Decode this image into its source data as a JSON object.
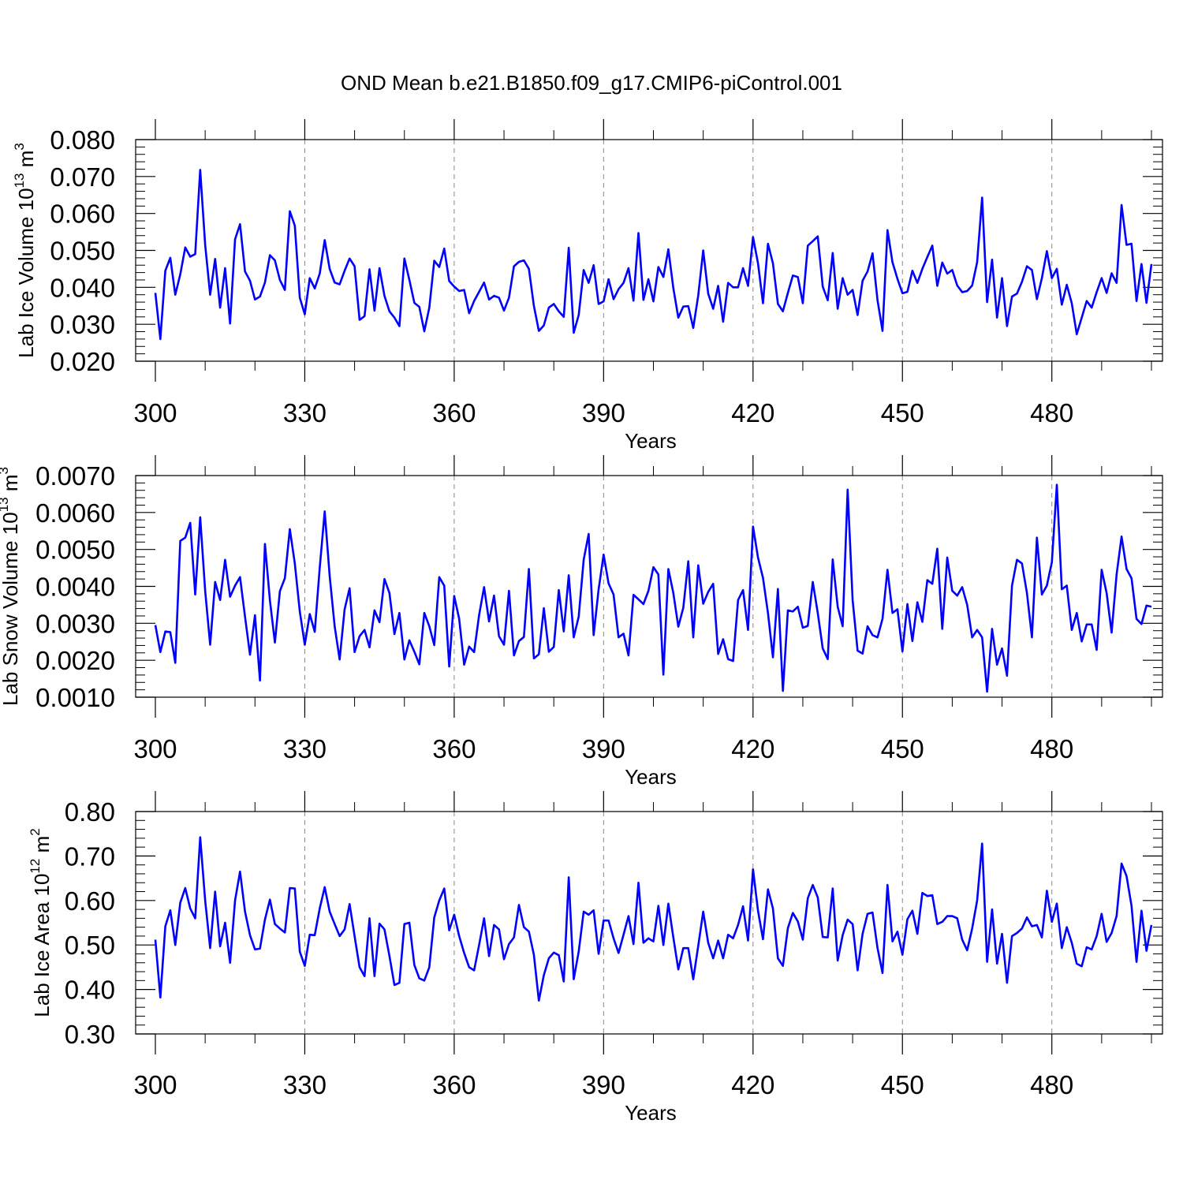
{
  "title": "OND Mean b.e21.B1850.f09_g17.CMIP6-piControl.001",
  "chart_data": [
    {
      "type": "line",
      "title": "OND Mean b.e21.B1850.f09_g17.CMIP6-piControl.001",
      "xlabel": "Years",
      "ylabel": "Lab Ice Volume 10",
      "ylabel_exp": "13",
      "ylabel_unit": " m",
      "ylabel_unit_exp": "3",
      "xlim": [
        300,
        500
      ],
      "ylim": [
        0.02,
        0.08
      ],
      "xticks": [
        300,
        330,
        360,
        390,
        420,
        450,
        480
      ],
      "xtick_labels": [
        "300",
        "330",
        "360",
        "390",
        "420",
        "450",
        "480"
      ],
      "yticks": [
        0.02,
        0.03,
        0.04,
        0.05,
        0.06,
        0.07,
        0.08
      ],
      "ytick_labels": [
        "0.020",
        "0.030",
        "0.040",
        "0.050",
        "0.060",
        "0.070",
        "0.080"
      ],
      "grid": "dashed vertical at x ticks",
      "series": [
        {
          "name": "Lab Ice Volume",
          "color": "#0000ff",
          "x_start": 300,
          "x_step": 1,
          "values": [
            0.0385,
            0.026,
            0.0445,
            0.048,
            0.038,
            0.0435,
            0.0508,
            0.0483,
            0.049,
            0.0718,
            0.0515,
            0.038,
            0.0477,
            0.0345,
            0.0452,
            0.0302,
            0.053,
            0.0571,
            0.0443,
            0.0418,
            0.0367,
            0.0375,
            0.0413,
            0.0487,
            0.0473,
            0.042,
            0.0393,
            0.0606,
            0.0567,
            0.0372,
            0.0327,
            0.0425,
            0.0397,
            0.0437,
            0.0528,
            0.045,
            0.0413,
            0.0408,
            0.0445,
            0.0478,
            0.0457,
            0.0312,
            0.0322,
            0.0449,
            0.0337,
            0.0452,
            0.0377,
            0.0335,
            0.0318,
            0.0295,
            0.0478,
            0.042,
            0.0358,
            0.0347,
            0.0281,
            0.0345,
            0.0472,
            0.0455,
            0.0505,
            0.0417,
            0.0402,
            0.039,
            0.0393,
            0.033,
            0.0363,
            0.0388,
            0.0413,
            0.0367,
            0.0377,
            0.0372,
            0.0337,
            0.0372,
            0.0457,
            0.0469,
            0.0473,
            0.045,
            0.035,
            0.0282,
            0.0297,
            0.0345,
            0.0355,
            0.0335,
            0.032,
            0.0507,
            0.0277,
            0.0325,
            0.0447,
            0.0412,
            0.046,
            0.0355,
            0.0362,
            0.0422,
            0.0368,
            0.0395,
            0.0412,
            0.0452,
            0.0364,
            0.0547,
            0.0366,
            0.0422,
            0.0362,
            0.0455,
            0.0428,
            0.0503,
            0.0398,
            0.0318,
            0.0348,
            0.0349,
            0.029,
            0.0378,
            0.05,
            0.0383,
            0.0342,
            0.0404,
            0.0307,
            0.0412,
            0.04,
            0.04,
            0.0452,
            0.0404,
            0.0536,
            0.0465,
            0.0357,
            0.0518,
            0.0465,
            0.0355,
            0.0335,
            0.0385,
            0.0432,
            0.0428,
            0.0357,
            0.0513,
            0.0525,
            0.0538,
            0.0402,
            0.0365,
            0.0493,
            0.0342,
            0.0425,
            0.038,
            0.0393,
            0.0325,
            0.0418,
            0.0443,
            0.0492,
            0.0365,
            0.0282,
            0.0555,
            0.0468,
            0.0423,
            0.0384,
            0.0388,
            0.0445,
            0.0412,
            0.045,
            0.0482,
            0.0513,
            0.0404,
            0.0467,
            0.0437,
            0.0447,
            0.0405,
            0.0387,
            0.039,
            0.0405,
            0.0468,
            0.0643,
            0.036,
            0.0475,
            0.0318,
            0.0425,
            0.0295,
            0.0375,
            0.0383,
            0.0415,
            0.0457,
            0.0447,
            0.0368,
            0.0425,
            0.0498,
            0.0425,
            0.045,
            0.0353,
            0.0407,
            0.0357,
            0.0273,
            0.0318,
            0.0363,
            0.0345,
            0.0387,
            0.0425,
            0.0385,
            0.0438,
            0.0412,
            0.0623,
            0.0515,
            0.0518,
            0.0363,
            0.0463,
            0.0358,
            0.0463
          ]
        }
      ]
    },
    {
      "type": "line",
      "xlabel": "Years",
      "ylabel": "Lab Snow Volume 10",
      "ylabel_exp": "13",
      "ylabel_unit": " m",
      "ylabel_unit_exp": "3",
      "xlim": [
        300,
        500
      ],
      "ylim": [
        0.001,
        0.007
      ],
      "xticks": [
        300,
        330,
        360,
        390,
        420,
        450,
        480
      ],
      "xtick_labels": [
        "300",
        "330",
        "360",
        "390",
        "420",
        "450",
        "480"
      ],
      "yticks": [
        0.001,
        0.002,
        0.003,
        0.004,
        0.005,
        0.006,
        0.007
      ],
      "ytick_labels": [
        "0.0010",
        "0.0020",
        "0.0030",
        "0.0040",
        "0.0050",
        "0.0060",
        "0.0070"
      ],
      "grid": "dashed vertical at x ticks",
      "series": [
        {
          "name": "Lab Snow Volume",
          "color": "#0000ff",
          "x_start": 300,
          "x_step": 1,
          "values": [
            0.00295,
            0.00222,
            0.00278,
            0.00276,
            0.00193,
            0.00523,
            0.00532,
            0.00572,
            0.00378,
            0.00587,
            0.00388,
            0.00242,
            0.00412,
            0.00363,
            0.00472,
            0.00372,
            0.00402,
            0.00425,
            0.00318,
            0.00215,
            0.00322,
            0.00145,
            0.00515,
            0.00362,
            0.00248,
            0.00387,
            0.00422,
            0.00555,
            0.00462,
            0.00332,
            0.00242,
            0.00325,
            0.00277,
            0.0045,
            0.00603,
            0.00428,
            0.00292,
            0.00202,
            0.00338,
            0.00395,
            0.00222,
            0.00265,
            0.00282,
            0.00235,
            0.00335,
            0.00303,
            0.0042,
            0.00382,
            0.00271,
            0.00328,
            0.00202,
            0.00254,
            0.00223,
            0.00189,
            0.00328,
            0.00292,
            0.00241,
            0.00425,
            0.00402,
            0.00183,
            0.00374,
            0.00312,
            0.00188,
            0.00237,
            0.00222,
            0.00322,
            0.00398,
            0.00305,
            0.00375,
            0.00265,
            0.00242,
            0.00388,
            0.00213,
            0.00252,
            0.00263,
            0.00447,
            0.00205,
            0.00216,
            0.00341,
            0.00223,
            0.00236,
            0.0039,
            0.00278,
            0.0043,
            0.00262,
            0.00318,
            0.00472,
            0.00542,
            0.00268,
            0.00392,
            0.00486,
            0.00408,
            0.00378,
            0.00262,
            0.00272,
            0.00213,
            0.00377,
            0.00365,
            0.00352,
            0.00388,
            0.00452,
            0.00432,
            0.00161,
            0.00447,
            0.00382,
            0.00291,
            0.00342,
            0.00468,
            0.00262,
            0.00457,
            0.00353,
            0.00385,
            0.00407,
            0.00217,
            0.00257,
            0.00203,
            0.00198,
            0.00363,
            0.0039,
            0.00282,
            0.00562,
            0.00478,
            0.00423,
            0.00328,
            0.00208,
            0.00393,
            0.00117,
            0.00335,
            0.00332,
            0.00345,
            0.00288,
            0.00293,
            0.00412,
            0.00328,
            0.00232,
            0.00203,
            0.00473,
            0.00345,
            0.00292,
            0.00662,
            0.00363,
            0.00226,
            0.00218,
            0.00292,
            0.00268,
            0.00262,
            0.00312,
            0.00445,
            0.00328,
            0.00338,
            0.00224,
            0.00352,
            0.00252,
            0.00357,
            0.00304,
            0.00417,
            0.00407,
            0.00502,
            0.00285,
            0.00478,
            0.00388,
            0.00375,
            0.00398,
            0.0035,
            0.00262,
            0.00282,
            0.00262,
            0.00115,
            0.00285,
            0.00188,
            0.00232,
            0.00158,
            0.00402,
            0.00472,
            0.00462,
            0.00382,
            0.00262,
            0.00532,
            0.00378,
            0.00402,
            0.00465,
            0.00675,
            0.00392,
            0.00402,
            0.00282,
            0.00328,
            0.00251,
            0.00297,
            0.00297,
            0.00228,
            0.00445,
            0.00382,
            0.00275,
            0.00432,
            0.00535,
            0.00447,
            0.00422,
            0.00312,
            0.00298,
            0.00348,
            0.00345
          ]
        }
      ]
    },
    {
      "type": "line",
      "xlabel": "Years",
      "ylabel": "Lab Ice Area 10",
      "ylabel_exp": "12",
      "ylabel_unit": " m",
      "ylabel_unit_exp": "2",
      "xlim": [
        300,
        500
      ],
      "ylim": [
        0.3,
        0.8
      ],
      "xticks": [
        300,
        330,
        360,
        390,
        420,
        450,
        480
      ],
      "xtick_labels": [
        "300",
        "330",
        "360",
        "390",
        "420",
        "450",
        "480"
      ],
      "yticks": [
        0.3,
        0.4,
        0.5,
        0.6,
        0.7,
        0.8
      ],
      "ytick_labels": [
        "0.30",
        "0.40",
        "0.50",
        "0.60",
        "0.70",
        "0.80"
      ],
      "grid": "dashed vertical at x ticks",
      "series": [
        {
          "name": "Lab Ice Area",
          "color": "#0000ff",
          "x_start": 300,
          "x_step": 1,
          "values": [
            0.512,
            0.382,
            0.542,
            0.578,
            0.5,
            0.595,
            0.628,
            0.582,
            0.56,
            0.742,
            0.6,
            0.493,
            0.62,
            0.497,
            0.55,
            0.46,
            0.6,
            0.665,
            0.575,
            0.522,
            0.49,
            0.492,
            0.557,
            0.602,
            0.547,
            0.537,
            0.528,
            0.628,
            0.627,
            0.485,
            0.453,
            0.523,
            0.522,
            0.582,
            0.63,
            0.575,
            0.547,
            0.52,
            0.535,
            0.592,
            0.52,
            0.45,
            0.43,
            0.56,
            0.43,
            0.548,
            0.535,
            0.475,
            0.41,
            0.415,
            0.547,
            0.55,
            0.455,
            0.425,
            0.42,
            0.45,
            0.562,
            0.6,
            0.627,
            0.533,
            0.568,
            0.52,
            0.482,
            0.45,
            0.443,
            0.5,
            0.56,
            0.475,
            0.545,
            0.535,
            0.468,
            0.502,
            0.517,
            0.59,
            0.54,
            0.53,
            0.478,
            0.375,
            0.432,
            0.47,
            0.483,
            0.477,
            0.418,
            0.652,
            0.423,
            0.485,
            0.575,
            0.568,
            0.578,
            0.48,
            0.555,
            0.555,
            0.515,
            0.482,
            0.523,
            0.565,
            0.502,
            0.64,
            0.505,
            0.515,
            0.508,
            0.588,
            0.5,
            0.593,
            0.517,
            0.445,
            0.493,
            0.493,
            0.423,
            0.498,
            0.575,
            0.505,
            0.47,
            0.51,
            0.47,
            0.523,
            0.515,
            0.545,
            0.587,
            0.51,
            0.67,
            0.577,
            0.513,
            0.625,
            0.582,
            0.47,
            0.453,
            0.538,
            0.572,
            0.553,
            0.512,
            0.605,
            0.635,
            0.607,
            0.518,
            0.517,
            0.627,
            0.465,
            0.522,
            0.557,
            0.547,
            0.443,
            0.525,
            0.57,
            0.573,
            0.493,
            0.437,
            0.635,
            0.508,
            0.53,
            0.478,
            0.558,
            0.577,
            0.525,
            0.617,
            0.61,
            0.612,
            0.547,
            0.552,
            0.565,
            0.565,
            0.56,
            0.512,
            0.488,
            0.537,
            0.6,
            0.728,
            0.462,
            0.58,
            0.458,
            0.525,
            0.415,
            0.52,
            0.527,
            0.537,
            0.562,
            0.542,
            0.545,
            0.517,
            0.622,
            0.552,
            0.593,
            0.493,
            0.54,
            0.505,
            0.458,
            0.452,
            0.495,
            0.49,
            0.52,
            0.57,
            0.507,
            0.527,
            0.565,
            0.683,
            0.655,
            0.588,
            0.462,
            0.577,
            0.487,
            0.545
          ]
        }
      ]
    }
  ]
}
